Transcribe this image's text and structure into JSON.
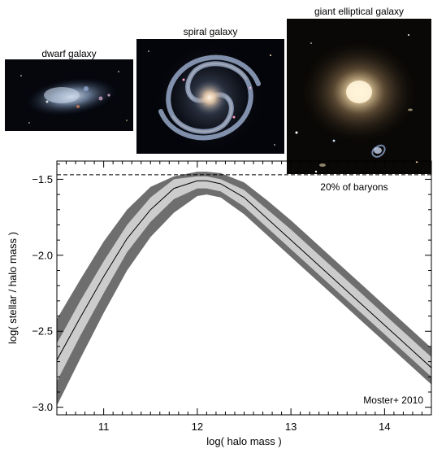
{
  "galaxies": [
    {
      "label": "dwarf galaxy",
      "type": "dwarf"
    },
    {
      "label": "spiral galaxy",
      "type": "spiral"
    },
    {
      "label": "giant elliptical galaxy",
      "type": "elliptical"
    }
  ],
  "chart_data": {
    "type": "line",
    "xlabel": "log( halo mass )",
    "ylabel": "log( stellar / halo mass )",
    "xlim": [
      10.5,
      14.5
    ],
    "ylim": [
      -3.05,
      -1.38
    ],
    "xticks": [
      11,
      12,
      13,
      14
    ],
    "xtick_labels": [
      "11",
      "12",
      "13",
      "14"
    ],
    "yticks": [
      -3.0,
      -2.5,
      -2.0,
      -1.5
    ],
    "ytick_labels": [
      "−3.0",
      "−2.5",
      "−2.0",
      "−1.5"
    ],
    "reference_line": {
      "y": -1.47,
      "style": "dashed",
      "label": "20% of baryons"
    },
    "annotation": "Moster+ 2010",
    "series": [
      {
        "kind": "median_line",
        "x": [
          10.5,
          10.75,
          11.0,
          11.25,
          11.5,
          11.75,
          12.0,
          12.1,
          12.25,
          12.5,
          12.75,
          13.0,
          13.25,
          13.5,
          13.75,
          14.0,
          14.25,
          14.5
        ],
        "y": [
          -2.69,
          -2.41,
          -2.14,
          -1.89,
          -1.7,
          -1.56,
          -1.51,
          -1.51,
          -1.53,
          -1.62,
          -1.76,
          -1.9,
          -2.04,
          -2.18,
          -2.32,
          -2.46,
          -2.6,
          -2.74
        ]
      },
      {
        "kind": "inner_band",
        "color": "#cccccc",
        "x": [
          10.5,
          10.75,
          11.0,
          11.25,
          11.5,
          11.75,
          12.0,
          12.1,
          12.25,
          12.5,
          12.75,
          13.0,
          13.25,
          13.5,
          13.75,
          14.0,
          14.25,
          14.5
        ],
        "upper": [
          -2.58,
          -2.3,
          -2.04,
          -1.8,
          -1.62,
          -1.5,
          -1.48,
          -1.48,
          -1.5,
          -1.57,
          -1.7,
          -1.83,
          -1.97,
          -2.11,
          -2.25,
          -2.39,
          -2.53,
          -2.67
        ],
        "lower": [
          -2.83,
          -2.53,
          -2.25,
          -1.98,
          -1.78,
          -1.63,
          -1.56,
          -1.56,
          -1.58,
          -1.68,
          -1.82,
          -1.96,
          -2.1,
          -2.24,
          -2.38,
          -2.52,
          -2.66,
          -2.8
        ]
      },
      {
        "kind": "outer_band",
        "color": "#6e6e6e",
        "x": [
          10.5,
          10.75,
          11.0,
          11.25,
          11.5,
          11.75,
          12.0,
          12.1,
          12.25,
          12.5,
          12.75,
          13.0,
          13.25,
          13.5,
          13.75,
          14.0,
          14.25,
          14.5
        ],
        "upper": [
          -2.42,
          -2.16,
          -1.91,
          -1.7,
          -1.55,
          -1.48,
          -1.45,
          -1.45,
          -1.46,
          -1.52,
          -1.64,
          -1.77,
          -1.91,
          -2.05,
          -2.19,
          -2.33,
          -2.47,
          -2.61
        ],
        "lower": [
          -2.99,
          -2.68,
          -2.38,
          -2.1,
          -1.88,
          -1.72,
          -1.61,
          -1.6,
          -1.62,
          -1.73,
          -1.87,
          -2.01,
          -2.15,
          -2.29,
          -2.43,
          -2.57,
          -2.71,
          -2.85
        ]
      }
    ]
  },
  "colors": {
    "inner_band": "#cccccc",
    "outer_band": "#6e6e6e",
    "line": "#000000",
    "dwarf_bg": "#05070d",
    "spiral_bg": "#04050a",
    "elliptical_bg": "#0a0806"
  }
}
